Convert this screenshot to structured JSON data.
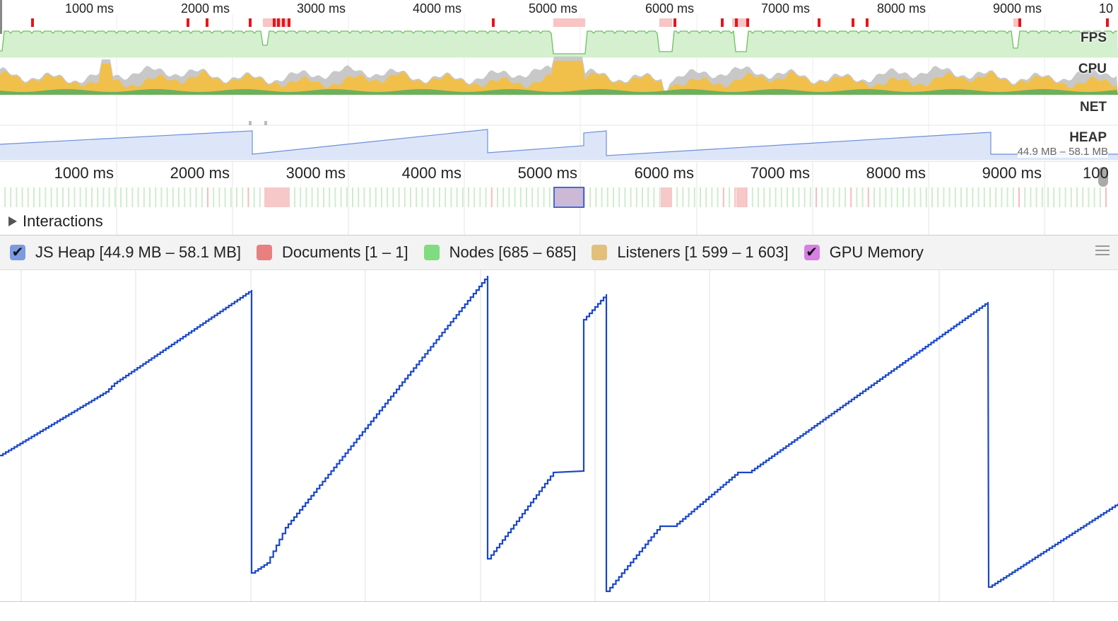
{
  "overview": {
    "top_ticks": [
      "1000 ms",
      "2000 ms",
      "3000 ms",
      "4000 ms",
      "5000 ms",
      "6000 ms",
      "7000 ms",
      "8000 ms",
      "9000 ms",
      "10"
    ],
    "labels": {
      "fps": "FPS",
      "cpu": "CPU",
      "net": "NET",
      "heap": "HEAP"
    },
    "heap_range": "44.9 MB – 58.1 MB"
  },
  "ruler": {
    "ticks": [
      "1000 ms",
      "2000 ms",
      "3000 ms",
      "4000 ms",
      "5000 ms",
      "6000 ms",
      "7000 ms",
      "8000 ms",
      "9000 ms",
      "100"
    ]
  },
  "interactions": {
    "label": "Interactions"
  },
  "counters": [
    {
      "label": "JS Heap [44.9 MB – 58.1 MB]",
      "color": "#7a9be0",
      "checked": true
    },
    {
      "label": "Documents [1 – 1]",
      "color": "#e88080",
      "checked": false
    },
    {
      "label": "Nodes [685 – 685]",
      "color": "#7fdc7f",
      "checked": false
    },
    {
      "label": "Listeners [1 599 – 1 603]",
      "color": "#e2c07a",
      "checked": false
    },
    {
      "label": "GPU Memory",
      "color": "#d77fe2",
      "checked": true
    }
  ],
  "colors": {
    "heap_line": "#1a47c9",
    "fps_fill": "#d4f0cf",
    "fps_line": "#6dc060",
    "cpu_scripting": "#f0c04a",
    "cpu_idle": "#c8c8c8",
    "cpu_painting": "#6db05c",
    "heap_overview_fill": "#dde6f8",
    "red_marker": "#e8131b",
    "pink_marker": "#f8c4c4"
  },
  "icons": {
    "checkbox": "checkmark-icon",
    "menu": "menu-icon",
    "expander": "triangle-right-icon"
  }
}
